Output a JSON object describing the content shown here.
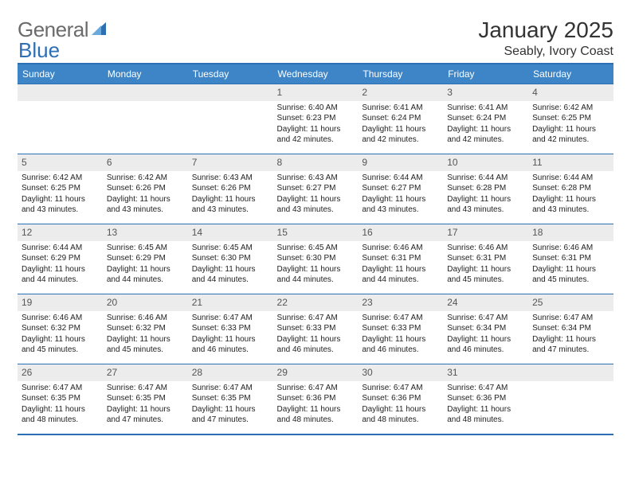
{
  "logo": {
    "general": "General",
    "blue": "Blue"
  },
  "title": "January 2025",
  "location": "Seably, Ivory Coast",
  "columns": [
    "Sunday",
    "Monday",
    "Tuesday",
    "Wednesday",
    "Thursday",
    "Friday",
    "Saturday"
  ],
  "colors": {
    "header_bg": "#3d85c6",
    "border": "#2d6fb5",
    "daynum_bg": "#ececec"
  },
  "weeks": [
    [
      null,
      null,
      null,
      {
        "n": "1",
        "sunrise": "6:40 AM",
        "sunset": "6:23 PM",
        "dl_h": "11",
        "dl_m": "42"
      },
      {
        "n": "2",
        "sunrise": "6:41 AM",
        "sunset": "6:24 PM",
        "dl_h": "11",
        "dl_m": "42"
      },
      {
        "n": "3",
        "sunrise": "6:41 AM",
        "sunset": "6:24 PM",
        "dl_h": "11",
        "dl_m": "42"
      },
      {
        "n": "4",
        "sunrise": "6:42 AM",
        "sunset": "6:25 PM",
        "dl_h": "11",
        "dl_m": "42"
      }
    ],
    [
      {
        "n": "5",
        "sunrise": "6:42 AM",
        "sunset": "6:25 PM",
        "dl_h": "11",
        "dl_m": "43"
      },
      {
        "n": "6",
        "sunrise": "6:42 AM",
        "sunset": "6:26 PM",
        "dl_h": "11",
        "dl_m": "43"
      },
      {
        "n": "7",
        "sunrise": "6:43 AM",
        "sunset": "6:26 PM",
        "dl_h": "11",
        "dl_m": "43"
      },
      {
        "n": "8",
        "sunrise": "6:43 AM",
        "sunset": "6:27 PM",
        "dl_h": "11",
        "dl_m": "43"
      },
      {
        "n": "9",
        "sunrise": "6:44 AM",
        "sunset": "6:27 PM",
        "dl_h": "11",
        "dl_m": "43"
      },
      {
        "n": "10",
        "sunrise": "6:44 AM",
        "sunset": "6:28 PM",
        "dl_h": "11",
        "dl_m": "43"
      },
      {
        "n": "11",
        "sunrise": "6:44 AM",
        "sunset": "6:28 PM",
        "dl_h": "11",
        "dl_m": "43"
      }
    ],
    [
      {
        "n": "12",
        "sunrise": "6:44 AM",
        "sunset": "6:29 PM",
        "dl_h": "11",
        "dl_m": "44"
      },
      {
        "n": "13",
        "sunrise": "6:45 AM",
        "sunset": "6:29 PM",
        "dl_h": "11",
        "dl_m": "44"
      },
      {
        "n": "14",
        "sunrise": "6:45 AM",
        "sunset": "6:30 PM",
        "dl_h": "11",
        "dl_m": "44"
      },
      {
        "n": "15",
        "sunrise": "6:45 AM",
        "sunset": "6:30 PM",
        "dl_h": "11",
        "dl_m": "44"
      },
      {
        "n": "16",
        "sunrise": "6:46 AM",
        "sunset": "6:31 PM",
        "dl_h": "11",
        "dl_m": "44"
      },
      {
        "n": "17",
        "sunrise": "6:46 AM",
        "sunset": "6:31 PM",
        "dl_h": "11",
        "dl_m": "45"
      },
      {
        "n": "18",
        "sunrise": "6:46 AM",
        "sunset": "6:31 PM",
        "dl_h": "11",
        "dl_m": "45"
      }
    ],
    [
      {
        "n": "19",
        "sunrise": "6:46 AM",
        "sunset": "6:32 PM",
        "dl_h": "11",
        "dl_m": "45"
      },
      {
        "n": "20",
        "sunrise": "6:46 AM",
        "sunset": "6:32 PM",
        "dl_h": "11",
        "dl_m": "45"
      },
      {
        "n": "21",
        "sunrise": "6:47 AM",
        "sunset": "6:33 PM",
        "dl_h": "11",
        "dl_m": "46"
      },
      {
        "n": "22",
        "sunrise": "6:47 AM",
        "sunset": "6:33 PM",
        "dl_h": "11",
        "dl_m": "46"
      },
      {
        "n": "23",
        "sunrise": "6:47 AM",
        "sunset": "6:33 PM",
        "dl_h": "11",
        "dl_m": "46"
      },
      {
        "n": "24",
        "sunrise": "6:47 AM",
        "sunset": "6:34 PM",
        "dl_h": "11",
        "dl_m": "46"
      },
      {
        "n": "25",
        "sunrise": "6:47 AM",
        "sunset": "6:34 PM",
        "dl_h": "11",
        "dl_m": "47"
      }
    ],
    [
      {
        "n": "26",
        "sunrise": "6:47 AM",
        "sunset": "6:35 PM",
        "dl_h": "11",
        "dl_m": "48"
      },
      {
        "n": "27",
        "sunrise": "6:47 AM",
        "sunset": "6:35 PM",
        "dl_h": "11",
        "dl_m": "47"
      },
      {
        "n": "28",
        "sunrise": "6:47 AM",
        "sunset": "6:35 PM",
        "dl_h": "11",
        "dl_m": "47"
      },
      {
        "n": "29",
        "sunrise": "6:47 AM",
        "sunset": "6:36 PM",
        "dl_h": "11",
        "dl_m": "48"
      },
      {
        "n": "30",
        "sunrise": "6:47 AM",
        "sunset": "6:36 PM",
        "dl_h": "11",
        "dl_m": "48"
      },
      {
        "n": "31",
        "sunrise": "6:47 AM",
        "sunset": "6:36 PM",
        "dl_h": "11",
        "dl_m": "48"
      },
      null
    ]
  ]
}
